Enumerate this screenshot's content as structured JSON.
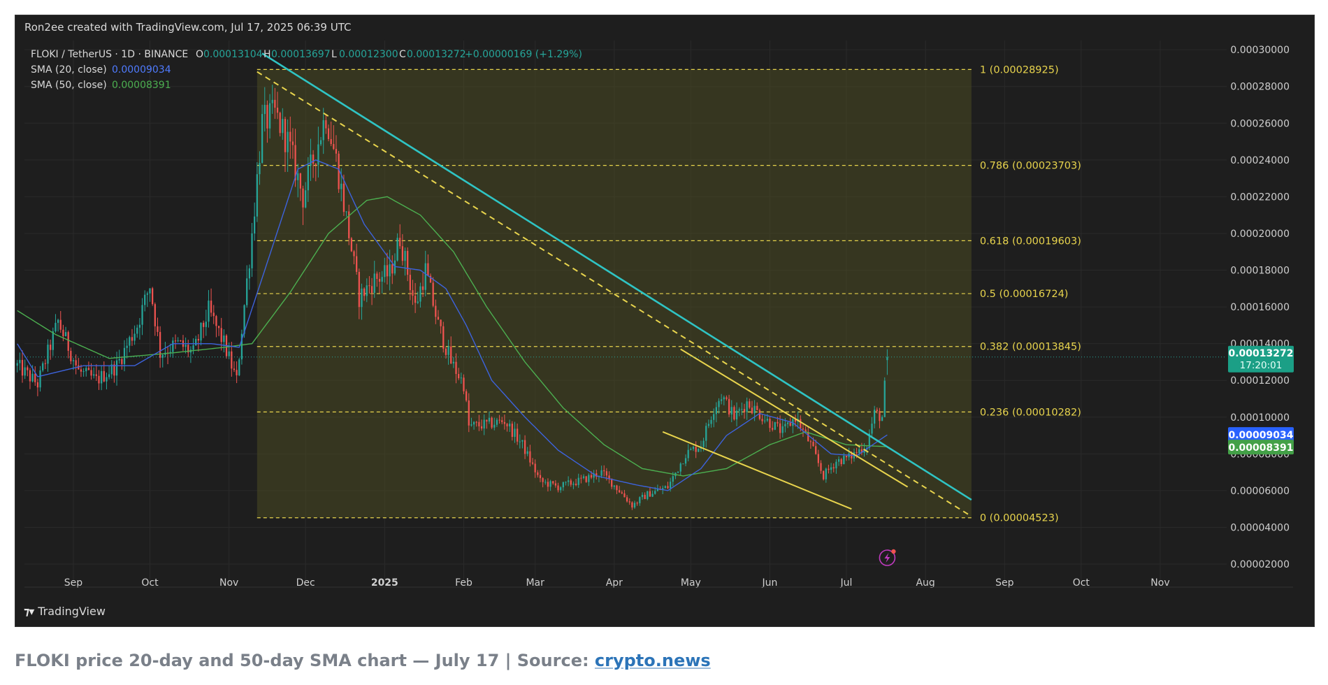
{
  "credit": "Ron2ee created with TradingView.com, Jul 17, 2025 06:39 UTC",
  "brand": "TradingView",
  "caption": {
    "text": "FLOKI price 20-day and 50-day SMA chart — July 17 | Source: ",
    "source_link": "crypto.news"
  },
  "legend": {
    "symbol": "FLOKI / TetherUS · 1D · BINANCE",
    "ohlc": [
      {
        "key": "O",
        "value": "0.00013104"
      },
      {
        "key": "H",
        "value": "0.00013697"
      },
      {
        "key": "L",
        "value": "0.00012300"
      },
      {
        "key": "C",
        "value": "0.00013272"
      }
    ],
    "change": "+0.00000169 (+1.29%)",
    "sma20_label": "SMA (20, close)",
    "sma20_value": "0.00009034",
    "sma50_label": "SMA (50, close)",
    "sma50_value": "0.00008391"
  },
  "price_tags": {
    "last_price": "0.00013272",
    "countdown": "17:20:01",
    "sma20": "0.00009034",
    "sma50": "0.00008391"
  },
  "colors": {
    "up": "#26a69a",
    "down": "#ef5350",
    "sma20": "#3d63dd",
    "sma50": "#4caf50",
    "fib": "#e8d44d",
    "trendline": "#2fc4c4",
    "channel": "#e8d44d",
    "last_price_tag": "#1b9f86",
    "sma20_tag": "#2962ff",
    "sma50_tag": "#43a047"
  },
  "chart_data": {
    "type": "candlestick",
    "ylim": [
      1.05e-05,
      0.000305
    ],
    "yticks": [
      "0.00030000",
      "0.00028000",
      "0.00026000",
      "0.00024000",
      "0.00022000",
      "0.00020000",
      "0.00018000",
      "0.00016000",
      "0.00014000",
      "0.00012000",
      "0.00010000",
      "0.00008000",
      "0.00006000",
      "0.00004000",
      "0.00002000"
    ],
    "xticks": [
      {
        "label": "Sep",
        "date": "2024-09-01"
      },
      {
        "label": "Oct",
        "date": "2024-10-01"
      },
      {
        "label": "Nov",
        "date": "2024-11-01"
      },
      {
        "label": "Dec",
        "date": "2024-12-01"
      },
      {
        "label": "2025",
        "date": "2025-01-01",
        "bold": true
      },
      {
        "label": "Feb",
        "date": "2025-02-01"
      },
      {
        "label": "Mar",
        "date": "2025-03-01"
      },
      {
        "label": "Apr",
        "date": "2025-04-01"
      },
      {
        "label": "May",
        "date": "2025-05-01"
      },
      {
        "label": "Jun",
        "date": "2025-06-01"
      },
      {
        "label": "Jul",
        "date": "2025-07-01"
      },
      {
        "label": "Aug",
        "date": "2025-08-01"
      },
      {
        "label": "Sep",
        "date": "2025-09-01"
      },
      {
        "label": "Oct",
        "date": "2025-10-01"
      },
      {
        "label": "Nov",
        "date": "2025-11-01"
      }
    ],
    "price_anchors": [
      [
        "2024-08-10",
        0.000128
      ],
      [
        "2024-08-18",
        0.000118
      ],
      [
        "2024-08-26",
        0.000152
      ],
      [
        "2024-09-03",
        0.000125
      ],
      [
        "2024-09-10",
        0.00012
      ],
      [
        "2024-09-18",
        0.000128
      ],
      [
        "2024-09-26",
        0.00015
      ],
      [
        "2024-10-01",
        0.000172
      ],
      [
        "2024-10-05",
        0.000135
      ],
      [
        "2024-10-12",
        0.00014
      ],
      [
        "2024-10-18",
        0.000135
      ],
      [
        "2024-10-24",
        0.000158
      ],
      [
        "2024-10-30",
        0.00014
      ],
      [
        "2024-11-04",
        0.00012
      ],
      [
        "2024-11-06",
        0.000148
      ],
      [
        "2024-11-10",
        0.0002
      ],
      [
        "2024-11-14",
        0.00026
      ],
      [
        "2024-11-19",
        0.000265
      ],
      [
        "2024-11-24",
        0.00025
      ],
      [
        "2024-11-30",
        0.00022
      ],
      [
        "2024-12-05",
        0.000245
      ],
      [
        "2024-12-09",
        0.000265
      ],
      [
        "2024-12-13",
        0.00024
      ],
      [
        "2024-12-18",
        0.0002
      ],
      [
        "2024-12-22",
        0.000165
      ],
      [
        "2024-12-28",
        0.000175
      ],
      [
        "2025-01-03",
        0.000178
      ],
      [
        "2025-01-07",
        0.000198
      ],
      [
        "2025-01-13",
        0.00016
      ],
      [
        "2025-01-17",
        0.00018
      ],
      [
        "2025-01-22",
        0.00015
      ],
      [
        "2025-01-27",
        0.00013
      ],
      [
        "2025-02-01",
        0.000118
      ],
      [
        "2025-02-03",
        9.5e-05
      ],
      [
        "2025-02-10",
        9.6e-05
      ],
      [
        "2025-02-17",
        9.8e-05
      ],
      [
        "2025-02-24",
        8.5e-05
      ],
      [
        "2025-03-03",
        6.5e-05
      ],
      [
        "2025-03-10",
        6.2e-05
      ],
      [
        "2025-03-20",
        6.6e-05
      ],
      [
        "2025-03-27",
        7e-05
      ],
      [
        "2025-04-03",
        6e-05
      ],
      [
        "2025-04-08",
        5.2e-05
      ],
      [
        "2025-04-14",
        5.8e-05
      ],
      [
        "2025-04-22",
        6.2e-05
      ],
      [
        "2025-04-29",
        8e-05
      ],
      [
        "2025-05-05",
        8.5e-05
      ],
      [
        "2025-05-10",
        0.000105
      ],
      [
        "2025-05-13",
        0.000112
      ],
      [
        "2025-05-18",
        0.0001
      ],
      [
        "2025-05-23",
        0.000108
      ],
      [
        "2025-05-31",
        9.8e-05
      ],
      [
        "2025-06-06",
        9.2e-05
      ],
      [
        "2025-06-11",
        0.0001
      ],
      [
        "2025-06-17",
        8.5e-05
      ],
      [
        "2025-06-22",
        6.8e-05
      ],
      [
        "2025-06-27",
        7.6e-05
      ],
      [
        "2025-07-02",
        7.8e-05
      ],
      [
        "2025-07-09",
        8.5e-05
      ],
      [
        "2025-07-12",
        0.000102
      ],
      [
        "2025-07-15",
        0.0001
      ],
      [
        "2025-07-17",
        0.00013272
      ]
    ],
    "sma20_anchors": [
      [
        "2024-08-10",
        0.00014
      ],
      [
        "2024-08-18",
        0.000122
      ],
      [
        "2024-09-05",
        0.000128
      ],
      [
        "2024-09-25",
        0.000128
      ],
      [
        "2024-10-10",
        0.00014
      ],
      [
        "2024-10-25",
        0.00014
      ],
      [
        "2024-11-05",
        0.000138
      ],
      [
        "2024-11-15",
        0.00018
      ],
      [
        "2024-11-28",
        0.000235
      ],
      [
        "2024-12-05",
        0.00024
      ],
      [
        "2024-12-14",
        0.000235
      ],
      [
        "2024-12-24",
        0.000205
      ],
      [
        "2025-01-05",
        0.000182
      ],
      [
        "2025-01-15",
        0.00018
      ],
      [
        "2025-01-25",
        0.00017
      ],
      [
        "2025-02-02",
        0.00015
      ],
      [
        "2025-02-12",
        0.00012
      ],
      [
        "2025-02-25",
        0.0001
      ],
      [
        "2025-03-10",
        8.2e-05
      ],
      [
        "2025-03-25",
        6.8e-05
      ],
      [
        "2025-04-10",
        6.3e-05
      ],
      [
        "2025-04-22",
        6e-05
      ],
      [
        "2025-05-05",
        7.2e-05
      ],
      [
        "2025-05-15",
        9e-05
      ],
      [
        "2025-05-28",
        0.000102
      ],
      [
        "2025-06-10",
        9.7e-05
      ],
      [
        "2025-06-25",
        8e-05
      ],
      [
        "2025-07-05",
        7.9e-05
      ],
      [
        "2025-07-17",
        9.034e-05
      ]
    ],
    "sma50_anchors": [
      [
        "2024-08-10",
        0.000158
      ],
      [
        "2024-08-25",
        0.000145
      ],
      [
        "2024-09-15",
        0.000132
      ],
      [
        "2024-10-10",
        0.000135
      ],
      [
        "2024-10-30",
        0.000138
      ],
      [
        "2024-11-10",
        0.00014
      ],
      [
        "2024-11-25",
        0.000168
      ],
      [
        "2024-12-10",
        0.0002
      ],
      [
        "2024-12-25",
        0.000218
      ],
      [
        "2025-01-02",
        0.00022
      ],
      [
        "2025-01-15",
        0.00021
      ],
      [
        "2025-01-28",
        0.00019
      ],
      [
        "2025-02-10",
        0.00016
      ],
      [
        "2025-02-25",
        0.00013
      ],
      [
        "2025-03-12",
        0.000105
      ],
      [
        "2025-03-28",
        8.5e-05
      ],
      [
        "2025-04-12",
        7.2e-05
      ],
      [
        "2025-04-28",
        6.8e-05
      ],
      [
        "2025-05-15",
        7.2e-05
      ],
      [
        "2025-06-01",
        8.5e-05
      ],
      [
        "2025-06-15",
        9.2e-05
      ],
      [
        "2025-07-01",
        8.5e-05
      ],
      [
        "2025-07-17",
        8.391e-05
      ]
    ],
    "fib_zone": {
      "from": "2024-11-12",
      "to": "2025-08-19"
    },
    "fib_levels": [
      {
        "label": "1 (0.00028925)",
        "value": 0.00028925
      },
      {
        "label": "0.786 (0.00023703)",
        "value": 0.00023703
      },
      {
        "label": "0.618 (0.00019603)",
        "value": 0.00019603
      },
      {
        "label": "0.5 (0.00016724)",
        "value": 0.00016724
      },
      {
        "label": "0.382 (0.00013845)",
        "value": 0.00013845
      },
      {
        "label": "0.236 (0.00010282)",
        "value": 0.00010282
      },
      {
        "label": "0 (0.00004523)",
        "value": 4.523e-05
      }
    ],
    "trendline": {
      "from": [
        "2024-11-14",
        0.000298
      ],
      "to": [
        "2025-08-19",
        5.5e-05
      ]
    },
    "dashed_trendline": {
      "from": [
        "2024-11-12",
        0.000288
      ],
      "to": [
        "2025-08-19",
        4.6e-05
      ]
    },
    "channel_upper": {
      "from": [
        "2025-04-27",
        0.000137
      ],
      "to": [
        "2025-07-25",
        6.2e-05
      ]
    },
    "channel_lower": {
      "from": [
        "2025-04-20",
        9.2e-05
      ],
      "to": [
        "2025-07-03",
        5e-05
      ]
    }
  }
}
